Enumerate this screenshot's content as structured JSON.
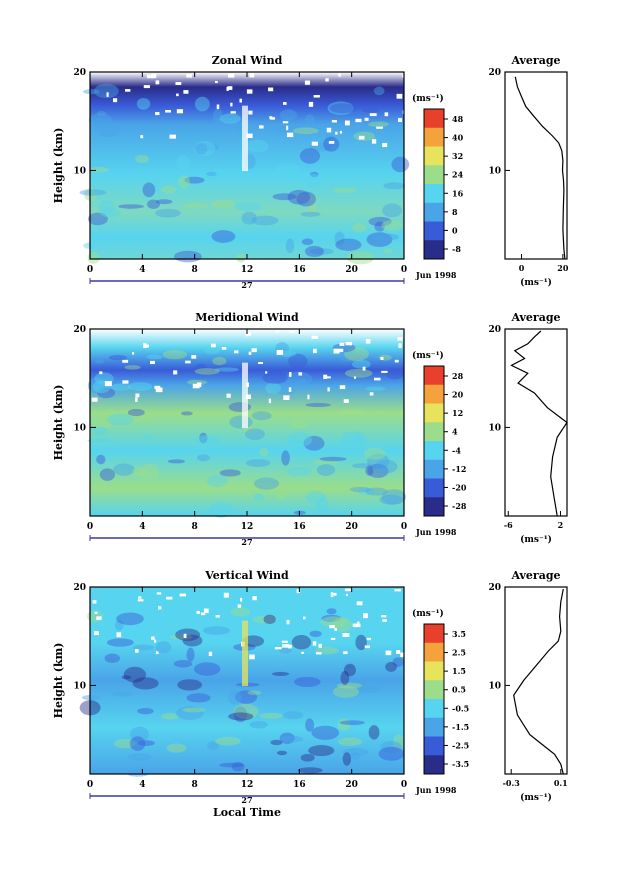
{
  "chart_data": [
    {
      "type": "heatmap",
      "title": "Zonal Wind",
      "ylabel": "Height (km)",
      "yticks": [
        "20",
        "10"
      ],
      "xticks": [
        "0",
        "4",
        "8",
        "12",
        "16",
        "20",
        "0"
      ],
      "day_label": "27",
      "date_label": "Jun 1998",
      "colorbar_unit": "(ms⁻¹)",
      "colorbar_ticks": [
        "48",
        "40",
        "32",
        "24",
        "16",
        "8",
        "0",
        "-8"
      ],
      "average": {
        "title": "Average",
        "xticks": [
          "0",
          "20"
        ],
        "yticks": [
          "20",
          "10"
        ],
        "xlabel": "(ms⁻¹)",
        "xlim": [
          -8,
          22
        ],
        "ylim": [
          1,
          20
        ],
        "x": [
          21,
          20.5,
          20,
          20.2,
          20.5,
          20.3,
          19.8,
          20,
          19.5,
          18,
          15,
          10,
          6,
          2,
          0,
          -2,
          -3
        ],
        "y": [
          1,
          2,
          4,
          6,
          8,
          9,
          10,
          11,
          12,
          12.8,
          13.5,
          14.5,
          15.5,
          16.5,
          17.5,
          18.5,
          19.5
        ]
      }
    },
    {
      "type": "heatmap",
      "title": "Meridional Wind",
      "ylabel": "Height (km)",
      "yticks": [
        "20",
        "10"
      ],
      "xticks": [
        "0",
        "4",
        "8",
        "12",
        "16",
        "20",
        "0"
      ],
      "day_label": "27",
      "date_label": "Jun 1998",
      "colorbar_unit": "(ms⁻¹)",
      "colorbar_ticks": [
        "28",
        "20",
        "12",
        "4",
        "-4",
        "-12",
        "-20",
        "-28"
      ],
      "average": {
        "title": "Average",
        "xticks": [
          "-6",
          "2"
        ],
        "yticks": [
          "20",
          "10"
        ],
        "xlabel": "(ms⁻¹)",
        "xlim": [
          -6.5,
          3
        ],
        "ylim": [
          1,
          20
        ],
        "x": [
          1.5,
          1.0,
          0.5,
          0.8,
          1.5,
          2.5,
          3.0,
          2.0,
          0.0,
          -2.0,
          -4.5,
          -3.0,
          -5.5,
          -3.5,
          -5.0,
          -3.0,
          -2.0,
          -1.0
        ],
        "y": [
          1,
          3,
          5,
          7,
          9,
          10,
          10.5,
          11,
          12,
          13.5,
          14.5,
          15.5,
          16.3,
          17,
          17.8,
          18.5,
          19.2,
          19.8
        ]
      }
    },
    {
      "type": "heatmap",
      "title": "Vertical Wind",
      "ylabel": "Height (km)",
      "xlabel": "Local Time",
      "yticks": [
        "20",
        "10"
      ],
      "xticks": [
        "0",
        "4",
        "8",
        "12",
        "16",
        "20",
        "0"
      ],
      "day_label": "27",
      "date_label": "Jun 1998",
      "colorbar_unit": "(ms⁻¹)",
      "colorbar_ticks": [
        "3.5",
        "2.5",
        "1.5",
        "0.5",
        "-0.5",
        "-1.5",
        "-2.5",
        "-3.5"
      ],
      "average": {
        "title": "Average",
        "xticks": [
          "-0.3",
          "0.1"
        ],
        "yticks": [
          "20",
          "10"
        ],
        "xlabel": "(ms⁻¹)",
        "xlim": [
          -0.35,
          0.15
        ],
        "ylim": [
          1,
          20
        ],
        "x": [
          0.12,
          0.1,
          0.05,
          -0.05,
          -0.15,
          -0.2,
          -0.25,
          -0.28,
          -0.2,
          -0.1,
          0.0,
          0.08,
          0.1,
          0.09,
          0.1,
          0.12
        ],
        "y": [
          1,
          2,
          3,
          4,
          5,
          6,
          7,
          9,
          10.5,
          12,
          13.5,
          14.5,
          15.5,
          17,
          18.5,
          19.8
        ]
      }
    }
  ],
  "colors": {
    "scale": [
      "#2a2c8a",
      "#3a5bd8",
      "#4aa4e8",
      "#57d4ef",
      "#9bdd8a",
      "#e8e35c",
      "#f4a23c",
      "#e8402c"
    ],
    "background": "#ffffff",
    "axis": "#000000"
  }
}
